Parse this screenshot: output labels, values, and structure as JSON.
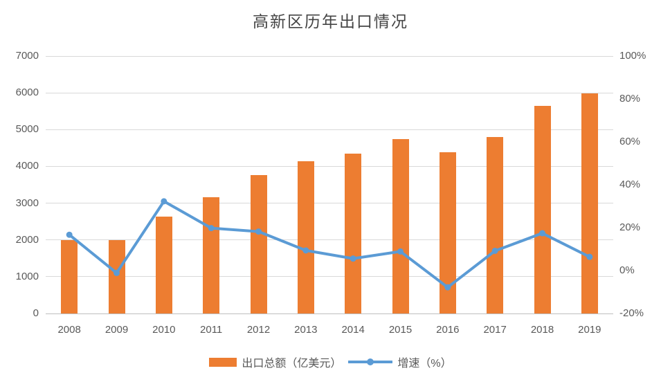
{
  "chart_data": {
    "type": "combo-bar-line",
    "title": "高新区历年出口情况",
    "categories": [
      "2008",
      "2009",
      "2010",
      "2011",
      "2012",
      "2013",
      "2014",
      "2015",
      "2016",
      "2017",
      "2018",
      "2019"
    ],
    "series": [
      {
        "name": "出口总额（亿美元）",
        "type": "bar",
        "axis": "left",
        "color": "#ED7D31",
        "values": [
          2000,
          2000,
          2640,
          3170,
          3770,
          4140,
          4350,
          4740,
          4380,
          4790,
          5650,
          5980
        ]
      },
      {
        "name": "增速（%）",
        "type": "line",
        "axis": "right",
        "color": "#5B9BD5",
        "values": [
          16.7,
          -1.1,
          32.3,
          19.8,
          18.2,
          9.4,
          5.6,
          8.9,
          -7.8,
          9.2,
          17.4,
          6.4
        ]
      }
    ],
    "left_axis": {
      "min": 0,
      "max": 7000,
      "step": 1000,
      "tick_labels": [
        "0",
        "1000",
        "2000",
        "3000",
        "4000",
        "5000",
        "6000",
        "7000"
      ]
    },
    "right_axis": {
      "min": -20,
      "max": 100,
      "step": 20,
      "tick_labels": [
        "-20%",
        "0%",
        "20%",
        "40%",
        "60%",
        "80%",
        "100%"
      ]
    },
    "grid": true,
    "legend_position": "bottom",
    "colors": {
      "bar": "#ED7D31",
      "line": "#5B9BD5",
      "grid": "#D9D9D9",
      "axis_line": "#BFBFBF",
      "tick_text": "#595959",
      "title_text": "#444444",
      "background": "#FFFFFF"
    }
  }
}
